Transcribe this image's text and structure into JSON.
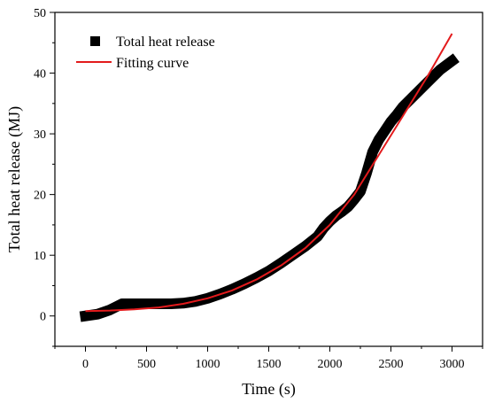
{
  "chart_data": {
    "type": "line",
    "xlabel": "Time (s)",
    "ylabel": "Total heat release (MJ)",
    "xlim": [
      -250,
      3250
    ],
    "ylim": [
      -5,
      50
    ],
    "x_ticks": [
      0,
      500,
      1000,
      1500,
      2000,
      2500,
      3000
    ],
    "y_ticks": [
      0,
      10,
      20,
      30,
      40,
      50
    ],
    "x_tick_labels": [
      "0",
      "500",
      "1000",
      "1500",
      "2000",
      "2500",
      "3000"
    ],
    "y_tick_labels": [
      "0",
      "10",
      "20",
      "30",
      "40",
      "50"
    ],
    "grid": false,
    "legend_position": "top-left",
    "series": [
      {
        "name": "Total heat release",
        "style": "thick-black-band",
        "color": "#000000",
        "x": [
          0,
          100,
          200,
          300,
          400,
          500,
          600,
          700,
          800,
          900,
          1000,
          1100,
          1200,
          1300,
          1400,
          1500,
          1600,
          1700,
          1800,
          1900,
          1950,
          2000,
          2050,
          2100,
          2150,
          2200,
          2250,
          2300,
          2350,
          2400,
          2450,
          2500,
          2550,
          2600,
          2700,
          2800,
          2900,
          3000
        ],
        "y": [
          0,
          0.3,
          1.0,
          2.0,
          2.0,
          2.0,
          2.0,
          2.0,
          2.1,
          2.4,
          2.9,
          3.6,
          4.4,
          5.3,
          6.3,
          7.4,
          8.7,
          10.1,
          11.5,
          13.1,
          14.5,
          15.6,
          16.5,
          17.2,
          18.0,
          19.2,
          20.5,
          23.5,
          27.0,
          29.0,
          30.5,
          32.0,
          33.2,
          34.5,
          36.5,
          38.5,
          40.5,
          42.0
        ]
      },
      {
        "name": "Fitting curve",
        "style": "line",
        "color": "#e31a1c",
        "x": [
          0,
          200,
          400,
          600,
          800,
          1000,
          1200,
          1400,
          1600,
          1800,
          2000,
          2200,
          2400,
          2600,
          2800,
          3000
        ],
        "y": [
          0.8,
          0.9,
          1.1,
          1.4,
          2.0,
          2.9,
          4.2,
          6.0,
          8.3,
          11.2,
          15.0,
          20.0,
          26.5,
          33.0,
          39.5,
          46.5
        ]
      }
    ]
  }
}
